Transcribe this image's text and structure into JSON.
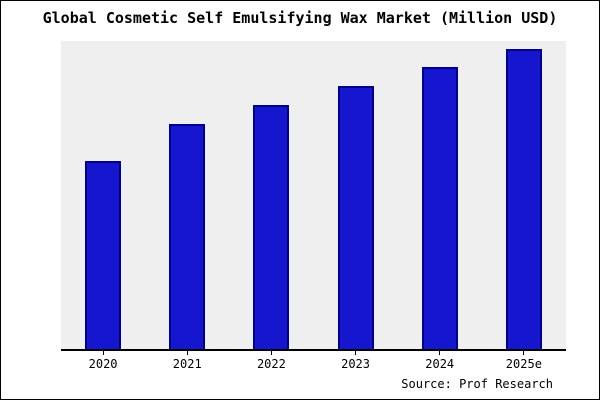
{
  "title": "Global Cosmetic Self Emulsifying Wax Market (Million USD)",
  "source": "Source: Prof Research",
  "colors": {
    "bar_fill": "#1616cf",
    "bar_border": "#00008b",
    "plot_bg": "#efefef",
    "page_bg": "#ffffff",
    "frame_border": "#000000"
  },
  "chart_data": {
    "type": "bar",
    "categories": [
      "2020",
      "2021",
      "2022",
      "2023",
      "2024",
      "2025e"
    ],
    "values": [
      62.5,
      75,
      81.5,
      87.5,
      94,
      100
    ],
    "title": "Global Cosmetic Self Emulsifying Wax Market (Million USD)",
    "xlabel": "",
    "ylabel": "",
    "ylim": [
      0,
      100
    ],
    "grid": false,
    "legend": false,
    "y_axis_tick_labels_shown": false
  }
}
